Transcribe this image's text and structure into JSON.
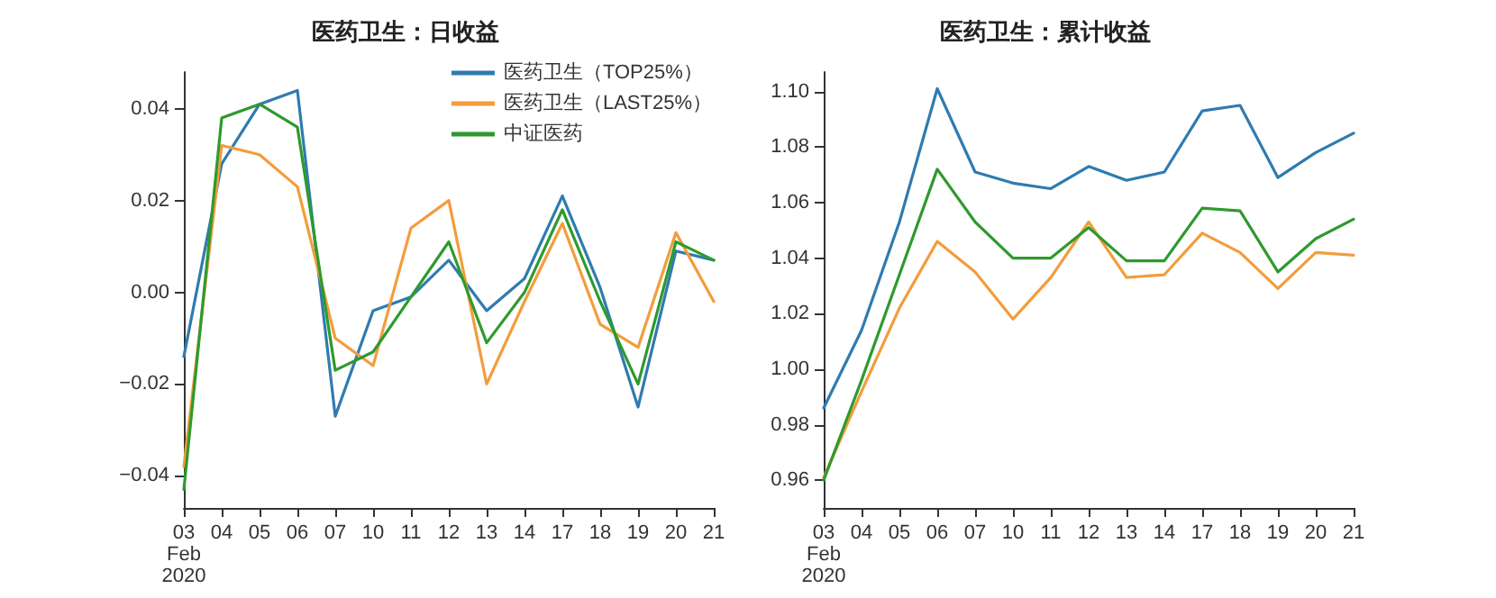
{
  "chart_data": [
    {
      "type": "line",
      "title": "医药卫生：日收益",
      "categories": [
        "03\nFeb\n2020",
        "04",
        "05",
        "06",
        "07",
        "10",
        "11",
        "12",
        "13",
        "14",
        "17",
        "18",
        "19",
        "20",
        "21"
      ],
      "ylim": [
        -0.047,
        0.048
      ],
      "yticks": [
        {
          "value": -0.04,
          "label": "−0.04"
        },
        {
          "value": -0.02,
          "label": "−0.02"
        },
        {
          "value": 0,
          "label": "0.00"
        },
        {
          "value": 0.02,
          "label": "0.02"
        },
        {
          "value": 0.04,
          "label": "0.04"
        }
      ],
      "grid": false,
      "legend": "top right",
      "marker": "none",
      "line_style": "solid",
      "series": [
        {
          "name": "医药卫生（TOP25%）",
          "color": "#2f7bb0",
          "values": [
            -0.014,
            0.028,
            0.041,
            0.044,
            -0.027,
            -0.004,
            -0.001,
            0.007,
            -0.004,
            0.003,
            0.021,
            0.001,
            -0.025,
            0.009,
            0.007
          ]
        },
        {
          "name": "医药卫生（LAST25%）",
          "color": "#f39c3c",
          "values": [
            -0.038,
            0.032,
            0.03,
            0.023,
            -0.01,
            -0.016,
            0.014,
            0.02,
            -0.02,
            -0.002,
            0.015,
            -0.007,
            -0.012,
            0.013,
            -0.002
          ]
        },
        {
          "name": "中证医药",
          "color": "#2e9a2e",
          "values": [
            -0.043,
            0.038,
            0.041,
            0.036,
            -0.017,
            -0.013,
            -0.001,
            0.011,
            -0.011,
            0.0,
            0.018,
            -0.002,
            -0.02,
            0.011,
            0.007
          ]
        }
      ]
    },
    {
      "type": "line",
      "title": "医药卫生：累计收益",
      "categories": [
        "03\nFeb\n2020",
        "04",
        "05",
        "06",
        "07",
        "10",
        "11",
        "12",
        "13",
        "14",
        "17",
        "18",
        "19",
        "20",
        "21"
      ],
      "ylim": [
        0.95,
        1.107
      ],
      "yticks": [
        {
          "value": 0.96,
          "label": "0.96"
        },
        {
          "value": 0.98,
          "label": "0.98"
        },
        {
          "value": 1.0,
          "label": "1.00"
        },
        {
          "value": 1.02,
          "label": "1.02"
        },
        {
          "value": 1.04,
          "label": "1.04"
        },
        {
          "value": 1.06,
          "label": "1.06"
        },
        {
          "value": 1.08,
          "label": "1.08"
        },
        {
          "value": 1.1,
          "label": "1.10"
        }
      ],
      "grid": false,
      "marker": "none",
      "line_style": "solid",
      "series": [
        {
          "color": "#2f7bb0",
          "values": [
            0.986,
            1.014,
            1.053,
            1.101,
            1.071,
            1.067,
            1.065,
            1.073,
            1.068,
            1.071,
            1.093,
            1.095,
            1.069,
            1.078,
            1.085
          ]
        },
        {
          "color": "#f39c3c",
          "values": [
            0.961,
            0.992,
            1.022,
            1.046,
            1.035,
            1.018,
            1.033,
            1.053,
            1.033,
            1.034,
            1.049,
            1.042,
            1.029,
            1.042,
            1.041
          ]
        },
        {
          "color": "#2e9a2e",
          "values": [
            0.96,
            0.996,
            1.034,
            1.072,
            1.053,
            1.04,
            1.04,
            1.051,
            1.039,
            1.039,
            1.058,
            1.057,
            1.035,
            1.047,
            1.054
          ]
        }
      ]
    }
  ]
}
